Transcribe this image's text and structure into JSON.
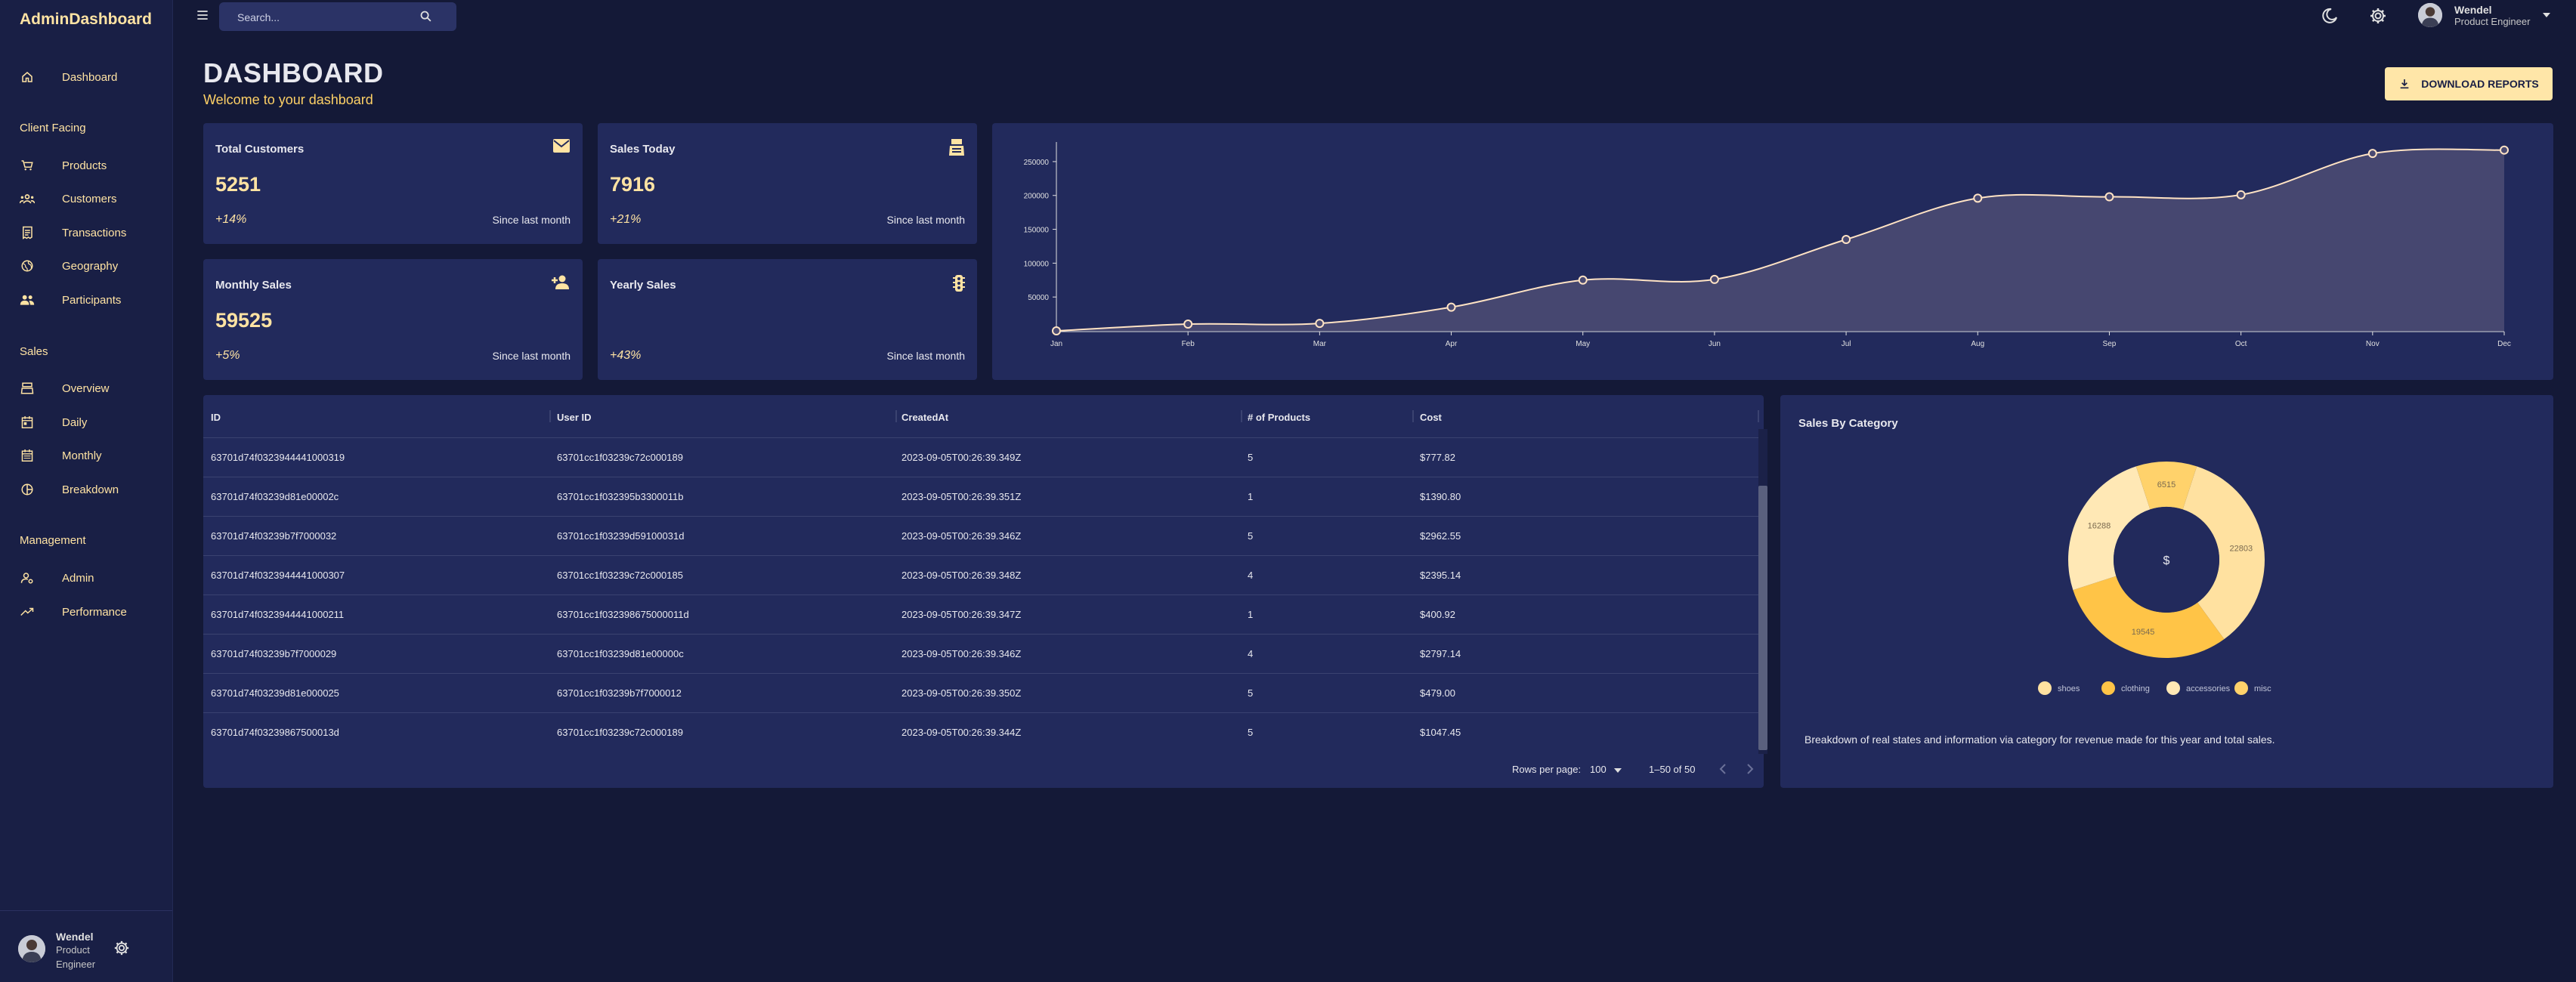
{
  "app": {
    "brand": "AdminDashboard"
  },
  "sidebar": {
    "items": [
      {
        "label": "Dashboard",
        "icon": "home-icon"
      },
      {
        "label": "Products",
        "icon": "cart-icon"
      },
      {
        "label": "Customers",
        "icon": "groups-icon"
      },
      {
        "label": "Transactions",
        "icon": "receipt-icon"
      },
      {
        "label": "Geography",
        "icon": "globe-icon"
      },
      {
        "label": "Participants",
        "icon": "people-icon"
      },
      {
        "label": "Overview",
        "icon": "point-of-sale-icon"
      },
      {
        "label": "Daily",
        "icon": "today-icon"
      },
      {
        "label": "Monthly",
        "icon": "calendar-month-icon"
      },
      {
        "label": "Breakdown",
        "icon": "pie-chart-icon"
      },
      {
        "label": "Admin",
        "icon": "admin-icon"
      },
      {
        "label": "Performance",
        "icon": "trending-up-icon"
      }
    ],
    "sections": [
      "Client Facing",
      "Sales",
      "Management"
    ],
    "user": {
      "name": "Wendel",
      "role_line1": "Product",
      "role_line2": "Engineer"
    }
  },
  "topbar": {
    "search_placeholder": "Search...",
    "user": {
      "name": "Wendel",
      "role": "Product Engineer"
    }
  },
  "header": {
    "title": "DASHBOARD",
    "subtitle": "Welcome to your dashboard",
    "download_label": "DOWNLOAD REPORTS"
  },
  "stats": [
    {
      "title": "Total Customers",
      "value": "5251",
      "change": "+14%",
      "since": "Since last month",
      "icon": "email-icon"
    },
    {
      "title": "Sales Today",
      "value": "7916",
      "change": "+21%",
      "since": "Since last month",
      "icon": "point-of-sale-icon"
    },
    {
      "title": "Monthly Sales",
      "value": "59525",
      "change": "+5%",
      "since": "Since last month",
      "icon": "person-add-icon"
    },
    {
      "title": "Yearly Sales",
      "value": "",
      "change": "+43%",
      "since": "Since last month",
      "icon": "traffic-icon"
    }
  ],
  "chart_data": [
    {
      "type": "area",
      "categories": [
        "Jan",
        "Feb",
        "Mar",
        "Apr",
        "May",
        "Jun",
        "Jul",
        "Aug",
        "Sep",
        "Oct",
        "Nov",
        "Dec"
      ],
      "values": [
        0,
        10000,
        11000,
        35000,
        75000,
        76000,
        135000,
        196000,
        198000,
        201000,
        262000,
        267000
      ],
      "yticks": [
        50000,
        100000,
        150000,
        200000,
        250000
      ],
      "ylim": [
        0,
        270000
      ],
      "grid": false,
      "colors": {
        "line": "#ffe3c4",
        "fill": "#4a4a72",
        "point": "#ffe3c4"
      }
    },
    {
      "type": "pie",
      "title": "Sales By Category",
      "center_label": "$",
      "slices": [
        {
          "name": "shoes",
          "value": 22803,
          "color": "#ffe1a0"
        },
        {
          "name": "clothing",
          "value": 19545,
          "color": "#ffc447"
        },
        {
          "name": "accessories",
          "value": 16288,
          "color": "#ffe8b5"
        },
        {
          "name": "misc",
          "value": 6515,
          "color": "#ffd26b"
        }
      ],
      "legend_position": "bottom"
    }
  ],
  "pie_description": "Breakdown of real states and information via category for revenue made for this year and total sales.",
  "table": {
    "columns": [
      "ID",
      "User ID",
      "CreatedAt",
      "# of Products",
      "Cost"
    ],
    "rows": [
      [
        "63701d74f0323944441000319",
        "63701cc1f03239c72c000189",
        "2023-09-05T00:26:39.349Z",
        "5",
        "$777.82"
      ],
      [
        "63701d74f03239d81e00002c",
        "63701cc1f032395b3300011b",
        "2023-09-05T00:26:39.351Z",
        "1",
        "$1390.80"
      ],
      [
        "63701d74f03239b7f7000032",
        "63701cc1f03239d59100031d",
        "2023-09-05T00:26:39.346Z",
        "5",
        "$2962.55"
      ],
      [
        "63701d74f0323944441000307",
        "63701cc1f03239c72c000185",
        "2023-09-05T00:26:39.348Z",
        "4",
        "$2395.14"
      ],
      [
        "63701d74f0323944441000211",
        "63701cc1f032398675000011d",
        "2023-09-05T00:26:39.347Z",
        "1",
        "$400.92"
      ],
      [
        "63701d74f03239b7f7000029",
        "63701cc1f03239d81e00000c",
        "2023-09-05T00:26:39.346Z",
        "4",
        "$2797.14"
      ],
      [
        "63701d74f03239d81e000025",
        "63701cc1f03239b7f7000012",
        "2023-09-05T00:26:39.350Z",
        "5",
        "$479.00"
      ],
      [
        "63701d74f03239867500013d",
        "63701cc1f03239c72c000189",
        "2023-09-05T00:26:39.344Z",
        "5",
        "$1047.45"
      ]
    ],
    "footer": {
      "rows_per_page_label": "Rows per page:",
      "rows_per_page": "100",
      "range": "1–50 of 50"
    }
  }
}
